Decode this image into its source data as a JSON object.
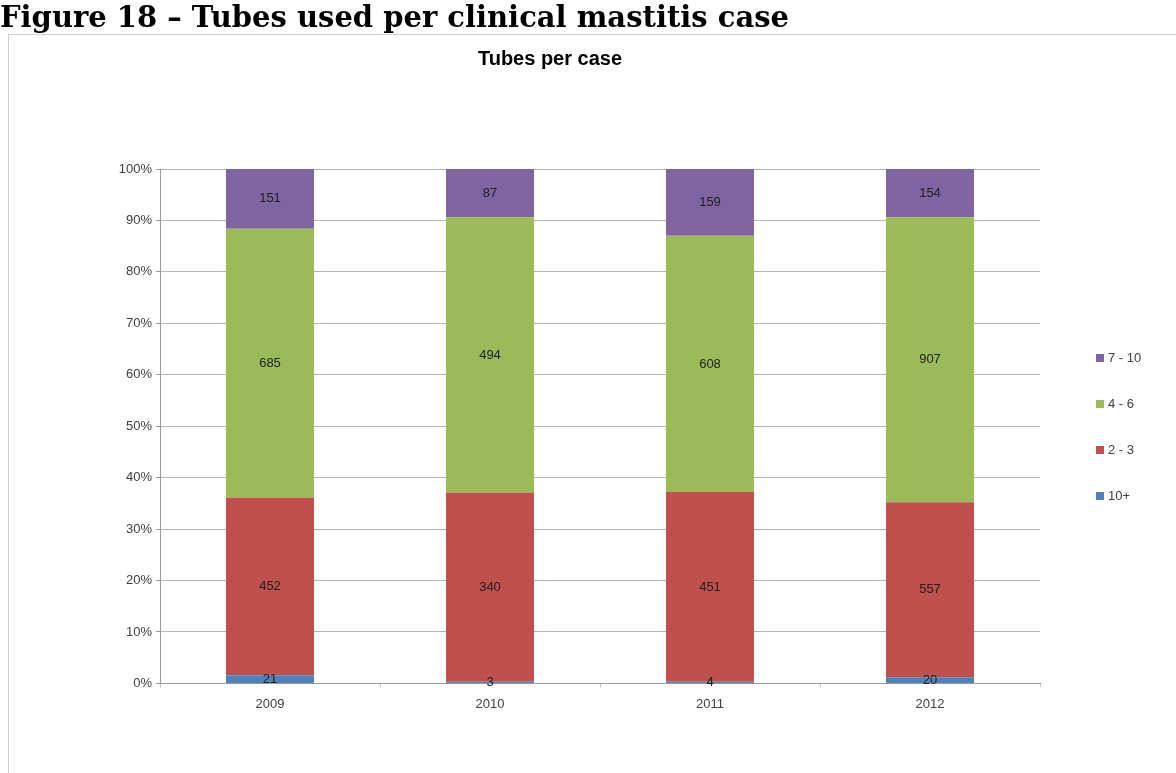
{
  "chart_data": {
    "type": "bar",
    "title": "Tubes per case",
    "annotations": [
      "Figure 18 – Tubes used per clinical mastitis case",
      "21",
      "3",
      "4",
      "20",
      "452",
      "340",
      "451",
      "557",
      "685",
      "494",
      "608",
      "907",
      "151",
      "87",
      "159",
      "154"
    ],
    "categories": [
      "2009",
      "2010",
      "2011",
      "2012"
    ],
    "stacked": true,
    "series": [
      {
        "name": "10+",
        "color": "#4f81bd",
        "values": [
          1.6,
          0.3,
          0.3,
          1.2
        ]
      },
      {
        "name": "2 - 3",
        "color": "#c0504d",
        "values": [
          34.5,
          36.8,
          36.9,
          34.0
        ]
      },
      {
        "name": "4 - 6",
        "color": "#9bbb59",
        "values": [
          52.3,
          53.5,
          49.8,
          55.4
        ]
      },
      {
        "name": "7 - 10",
        "color": "#8064a2",
        "values": [
          11.6,
          9.4,
          13.0,
          9.4
        ]
      }
    ],
    "ylim": [
      0,
      100
    ],
    "yticks": [
      {
        "value": 0,
        "label": "0%"
      },
      {
        "value": 10,
        "label": "10%"
      },
      {
        "value": 20,
        "label": "20%"
      },
      {
        "value": 30,
        "label": "30%"
      },
      {
        "value": 40,
        "label": "40%"
      },
      {
        "value": 50,
        "label": "50%"
      },
      {
        "value": 60,
        "label": "60%"
      },
      {
        "value": 70,
        "label": "70%"
      },
      {
        "value": 80,
        "label": "80%"
      },
      {
        "value": 90,
        "label": "90%"
      },
      {
        "value": 100,
        "label": "100%"
      }
    ],
    "grid": "y",
    "legend": "right"
  }
}
